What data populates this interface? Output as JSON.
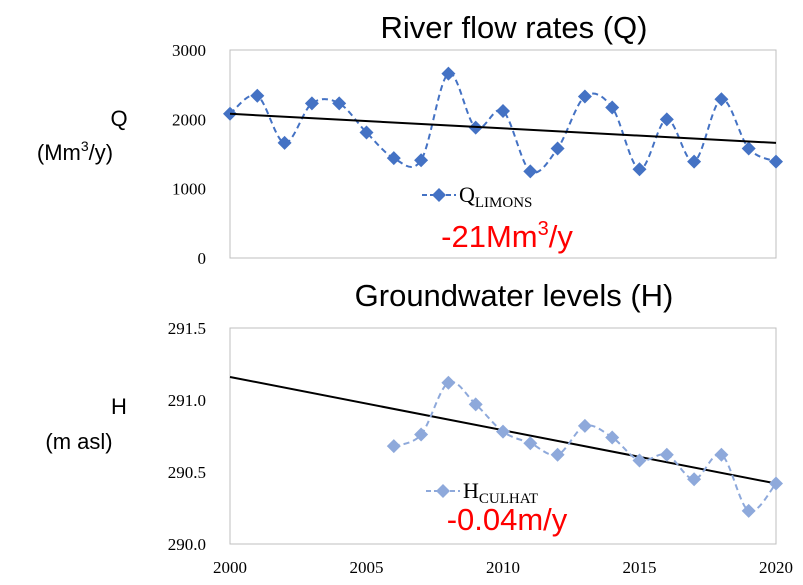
{
  "colors": {
    "q_series": "#4472C4",
    "h_series": "#8EA9DB",
    "trend": "#000000",
    "annotation": "#FF0000",
    "axis": "#BFBFBF",
    "text": "#000000"
  },
  "chart_data": [
    {
      "type": "line",
      "title": "River flow rates (Q)",
      "ylabel": "Q",
      "ylabel_unit_base": "(Mm",
      "ylabel_unit_sup": "3",
      "ylabel_unit_tail": "/y)",
      "xlim": [
        2000,
        2020
      ],
      "ylim": [
        0,
        3000
      ],
      "yticks": [
        "0",
        "1000",
        "2000",
        "3000"
      ],
      "grid": false,
      "legend_position": "bottom-center",
      "series": [
        {
          "name": "Q",
          "name_sub": "LIMONS",
          "marker": "diamond",
          "line": "dashed-smooth",
          "x": [
            2000,
            2001,
            2002,
            2003,
            2004,
            2005,
            2006,
            2007,
            2008,
            2009,
            2010,
            2011,
            2012,
            2013,
            2014,
            2015,
            2016,
            2017,
            2018,
            2019,
            2020
          ],
          "y": [
            2080,
            2340,
            1660,
            2230,
            2230,
            1810,
            1440,
            1410,
            2660,
            1880,
            2120,
            1250,
            1580,
            2330,
            2170,
            1280,
            2000,
            1390,
            2290,
            1580,
            1390
          ]
        }
      ],
      "trend": {
        "x": [
          2000,
          2020
        ],
        "y": [
          2080,
          1660
        ]
      },
      "annotation": {
        "base": "-21Mm",
        "sup": "3",
        "tail": "/y"
      }
    },
    {
      "type": "line",
      "title": "Groundwater levels (H)",
      "ylabel": "H",
      "ylabel_unit": "(m asl)",
      "xlim": [
        2000,
        2020
      ],
      "ylim": [
        290.0,
        291.5
      ],
      "yticks": [
        "290.0",
        "290.5",
        "291.0",
        "291.5"
      ],
      "xticks": [
        "2000",
        "2005",
        "2010",
        "2015",
        "2020"
      ],
      "grid": false,
      "legend_position": "bottom-center",
      "series": [
        {
          "name": "H",
          "name_sub": "CULHAT",
          "marker": "diamond",
          "line": "dashed-smooth",
          "x": [
            2006,
            2007,
            2008,
            2009,
            2010,
            2011,
            2012,
            2013,
            2014,
            2015,
            2016,
            2017,
            2018,
            2019,
            2020
          ],
          "y": [
            290.68,
            290.76,
            291.12,
            290.97,
            290.78,
            290.7,
            290.62,
            290.82,
            290.74,
            290.58,
            290.62,
            290.45,
            290.62,
            290.23,
            290.42
          ]
        }
      ],
      "trend": {
        "x": [
          2000,
          2020
        ],
        "y": [
          291.16,
          290.42
        ]
      },
      "annotation": {
        "text": "-0.04m/y"
      }
    }
  ]
}
